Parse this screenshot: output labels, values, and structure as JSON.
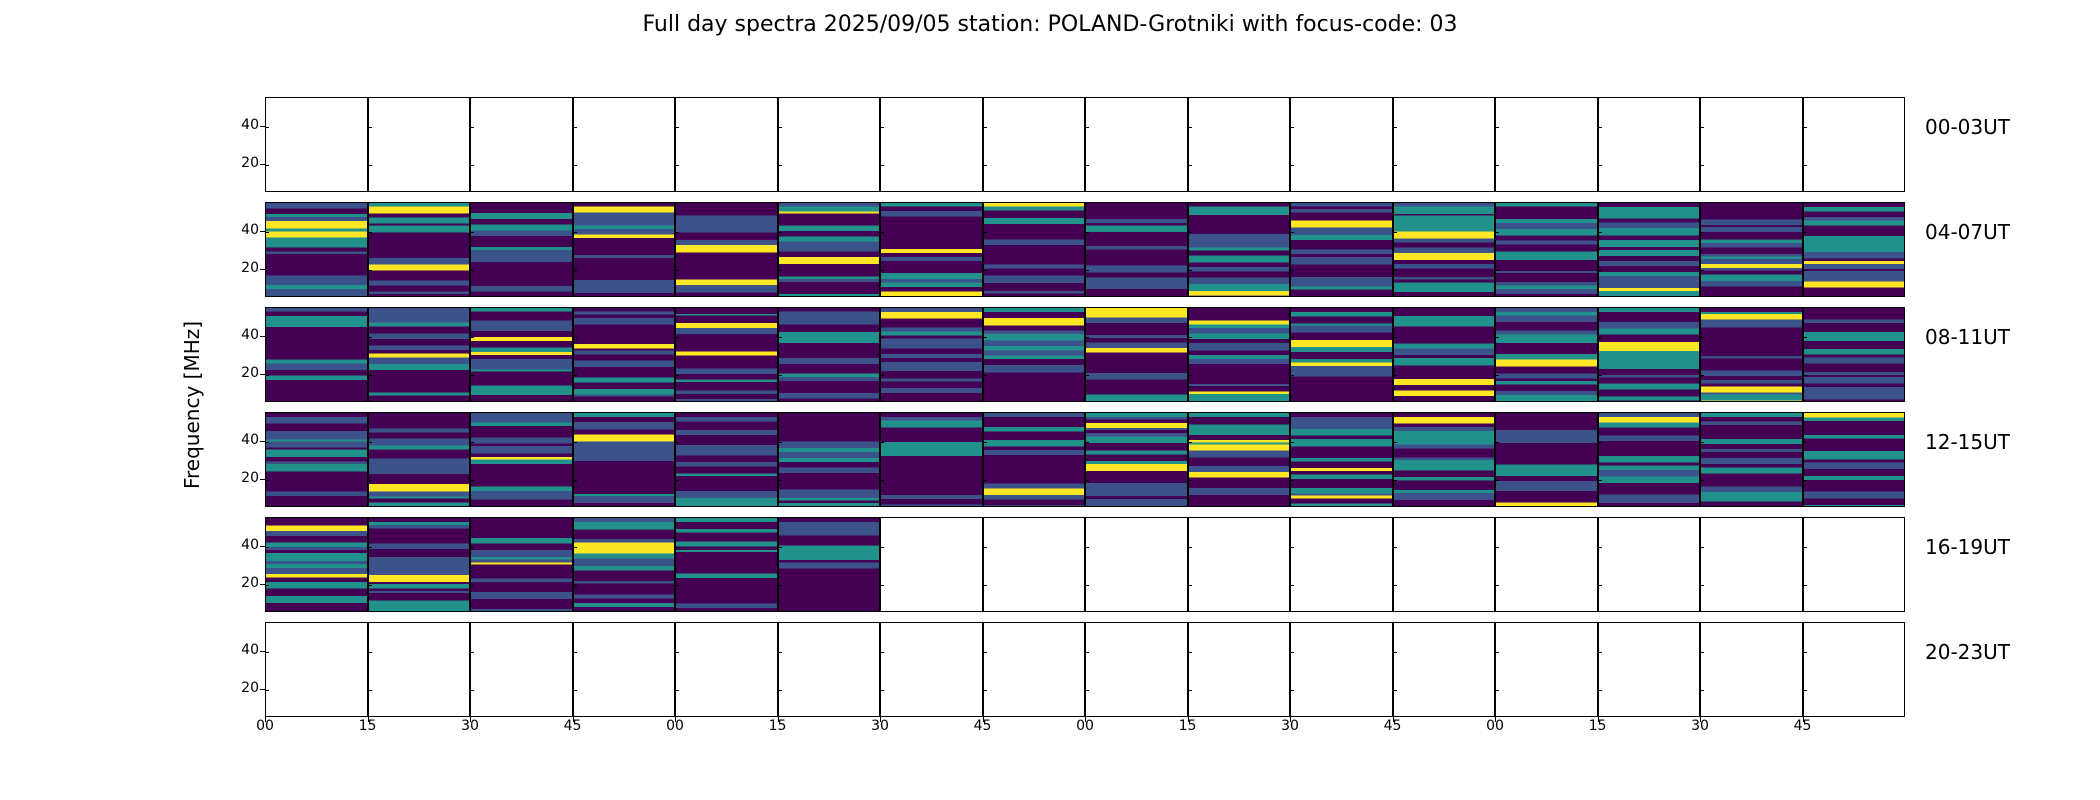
{
  "chart_data": {
    "type": "heatmap",
    "title": "Full day spectra 2025/09/05 station: POLAND-Grotniki with focus-code: 03",
    "ylabel": "Frequency [MHz]",
    "yticks": [
      20,
      40
    ],
    "ylim": [
      5,
      55
    ],
    "xtick_labels": [
      "00",
      "15",
      "30",
      "45",
      "00",
      "15",
      "30",
      "45",
      "00",
      "15",
      "30",
      "45",
      "00",
      "15",
      "30",
      "45"
    ],
    "colormap": "viridis",
    "colors": {
      "low": "#440154",
      "mid": "#21918c",
      "high": "#fde725"
    },
    "panels_per_row": 16,
    "rows": [
      {
        "label": "00-03UT",
        "data_panels": 0
      },
      {
        "label": "04-07UT",
        "data_panels": 16
      },
      {
        "label": "08-11UT",
        "data_panels": 16
      },
      {
        "label": "12-15UT",
        "data_panels": 16
      },
      {
        "label": "16-19UT",
        "data_panels": 6
      },
      {
        "label": "20-23UT",
        "data_panels": 0
      }
    ]
  }
}
